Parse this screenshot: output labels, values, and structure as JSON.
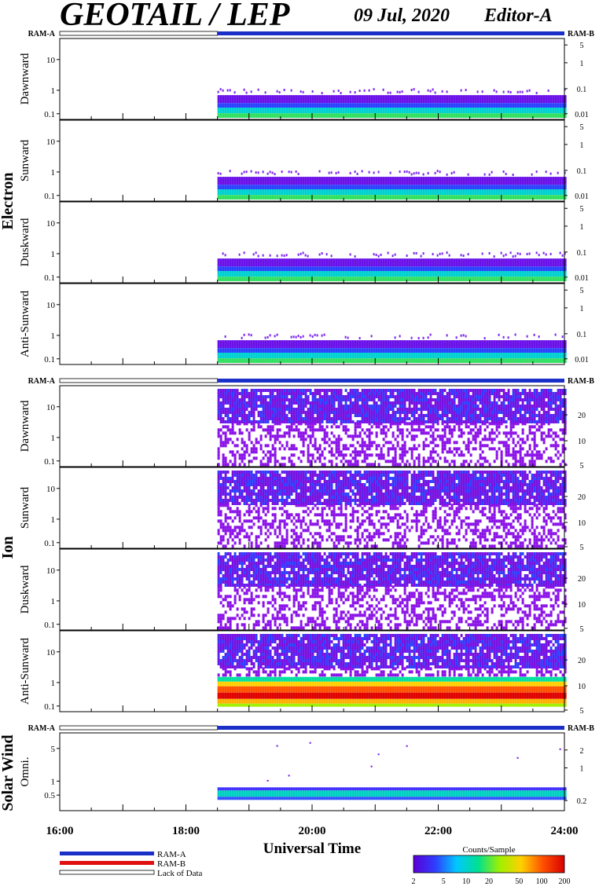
{
  "header": {
    "title": "GEOTAIL / LEP",
    "date": "09 Jul, 2020",
    "editor": "Editor-A"
  },
  "groups": [
    {
      "label": "Electron",
      "panels": [
        "Dawnward",
        "Sunward",
        "Duskward",
        "Anti-Sunward"
      ]
    },
    {
      "label": "Ion",
      "panels": [
        "Dawnward",
        "Sunward",
        "Duskward",
        "Anti-Sunward"
      ]
    },
    {
      "label": "Solar Wind",
      "panels": [
        "Omni."
      ]
    }
  ],
  "ram": {
    "a_label": "RAM-A",
    "b_label": "RAM-B",
    "data_start_hour": 18.5
  },
  "legend": {
    "ram_a": "RAM-A",
    "ram_b": "RAM-B",
    "lack": "Lack of Data",
    "ram_a_color": "#1a2fc8",
    "ram_b_color": "#e01010"
  },
  "colorbar": {
    "title": "Counts/Sample",
    "ticks": [
      "2",
      "5",
      "10",
      "20",
      "50",
      "100",
      "200"
    ],
    "colors": [
      "#5a00d8",
      "#2f3cff",
      "#00c8ff",
      "#00e090",
      "#a0f000",
      "#ffd000",
      "#ff5000",
      "#d80000"
    ]
  },
  "axis": {
    "xlabel": "Universal Time",
    "xticks": [
      "16:00",
      "18:00",
      "20:00",
      "22:00",
      "24:00"
    ],
    "xrange": [
      16,
      24
    ]
  },
  "chart_data": {
    "type": "heatmap",
    "x_unit": "hours UT",
    "panels": [
      {
        "name": "Electron Dawnward",
        "left_ticks": [
          "10",
          "1",
          "0.1"
        ],
        "right_ticks": [
          "5",
          "1",
          "0.1",
          "0.01"
        ]
      },
      {
        "name": "Electron Sunward",
        "left_ticks": [
          "10",
          "1",
          "0.1"
        ],
        "right_ticks": [
          "5",
          "1",
          "0.1",
          "0.01"
        ]
      },
      {
        "name": "Electron Duskward",
        "left_ticks": [
          "10",
          "1",
          "0.1"
        ],
        "right_ticks": [
          "5",
          "1",
          "0.1",
          "0.01"
        ]
      },
      {
        "name": "Electron Anti-Sunward",
        "left_ticks": [
          "10",
          "1",
          "0.1"
        ],
        "right_ticks": [
          "5",
          "1",
          "0.1",
          "0.01"
        ]
      },
      {
        "name": "Ion Dawnward",
        "left_ticks": [
          "10",
          "1",
          "0.1"
        ],
        "right_ticks": [
          "20",
          "10",
          "5"
        ]
      },
      {
        "name": "Ion Sunward",
        "left_ticks": [
          "10",
          "1",
          "0.1"
        ],
        "right_ticks": [
          "20",
          "10",
          "5"
        ]
      },
      {
        "name": "Ion Duskward",
        "left_ticks": [
          "10",
          "1",
          "0.1"
        ],
        "right_ticks": [
          "20",
          "10",
          "5"
        ]
      },
      {
        "name": "Ion Anti-Sunward",
        "left_ticks": [
          "10",
          "1",
          "0.1"
        ],
        "right_ticks": [
          "20",
          "10",
          "5"
        ]
      },
      {
        "name": "Solar Wind Omni.",
        "left_ticks": [
          "5",
          "1",
          "0.5"
        ],
        "right_ticks": [
          "2",
          "1",
          "0.2"
        ]
      }
    ]
  }
}
